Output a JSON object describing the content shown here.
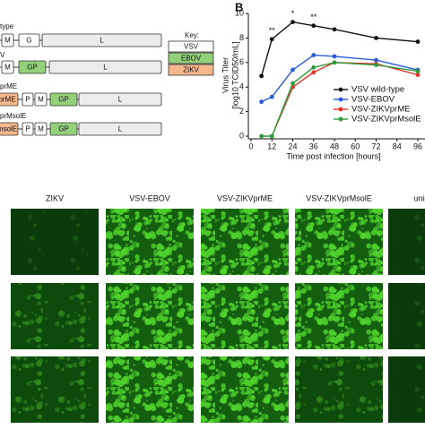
{
  "genome_diagram": {
    "rows": [
      {
        "label": "type",
        "boxes": [
          "M",
          "G",
          "L"
        ]
      },
      {
        "label": "V",
        "boxes": [
          "M",
          "GP",
          "L"
        ]
      },
      {
        "label": "prME",
        "boxes": [
          "prME",
          "P",
          "M",
          "GP",
          "L"
        ]
      },
      {
        "label": "prMsolE",
        "boxes": [
          "msolE",
          "P",
          "M",
          "GP",
          "L"
        ]
      }
    ],
    "key": {
      "title": "Key:",
      "items": [
        "VSV",
        "EBOV",
        "ZIKV"
      ]
    }
  },
  "chart_data": {
    "type": "line",
    "panel": "B",
    "ylabel": [
      "Virus Titer",
      "[log10 TCID50/mL]"
    ],
    "xlabel": "Time post infection [hours]",
    "x": [
      6,
      12,
      24,
      36,
      48,
      72,
      96
    ],
    "series": [
      {
        "name": "VSV wild-type",
        "color": "#111111",
        "values": [
          4.9,
          7.9,
          9.3,
          9.0,
          8.7,
          8.0,
          7.7
        ]
      },
      {
        "name": "VSV-EBOV",
        "color": "#2a5bd7",
        "values": [
          2.8,
          3.2,
          5.4,
          6.6,
          6.5,
          6.2,
          5.4
        ]
      },
      {
        "name": "VSV-ZIKVprME",
        "color": "#e0342a",
        "values": [
          null,
          0,
          4.0,
          5.2,
          6.0,
          5.9,
          5.0
        ]
      },
      {
        "name": "VSV-ZIKVprMsolE",
        "color": "#2e9b3a",
        "values": [
          0,
          0,
          4.3,
          5.6,
          6.0,
          5.8,
          5.3
        ]
      }
    ],
    "annotations": [
      {
        "text": "**",
        "x": 12
      },
      {
        "text": "*",
        "x": 24
      },
      {
        "text": "**",
        "x": 36
      }
    ],
    "xlim": [
      0,
      96
    ],
    "ylim": [
      0,
      10
    ],
    "xticks": [
      0,
      12,
      24,
      36,
      48,
      60,
      72,
      84,
      96
    ],
    "yticks": [
      0,
      2,
      4,
      6,
      8,
      10
    ],
    "legend": "lower right"
  },
  "micrographs": {
    "columns": [
      "ZIKV",
      "VSV-EBOV",
      "VSV-ZIKVprME",
      "VSV-ZIKVprMsolE",
      "uninfected"
    ]
  }
}
